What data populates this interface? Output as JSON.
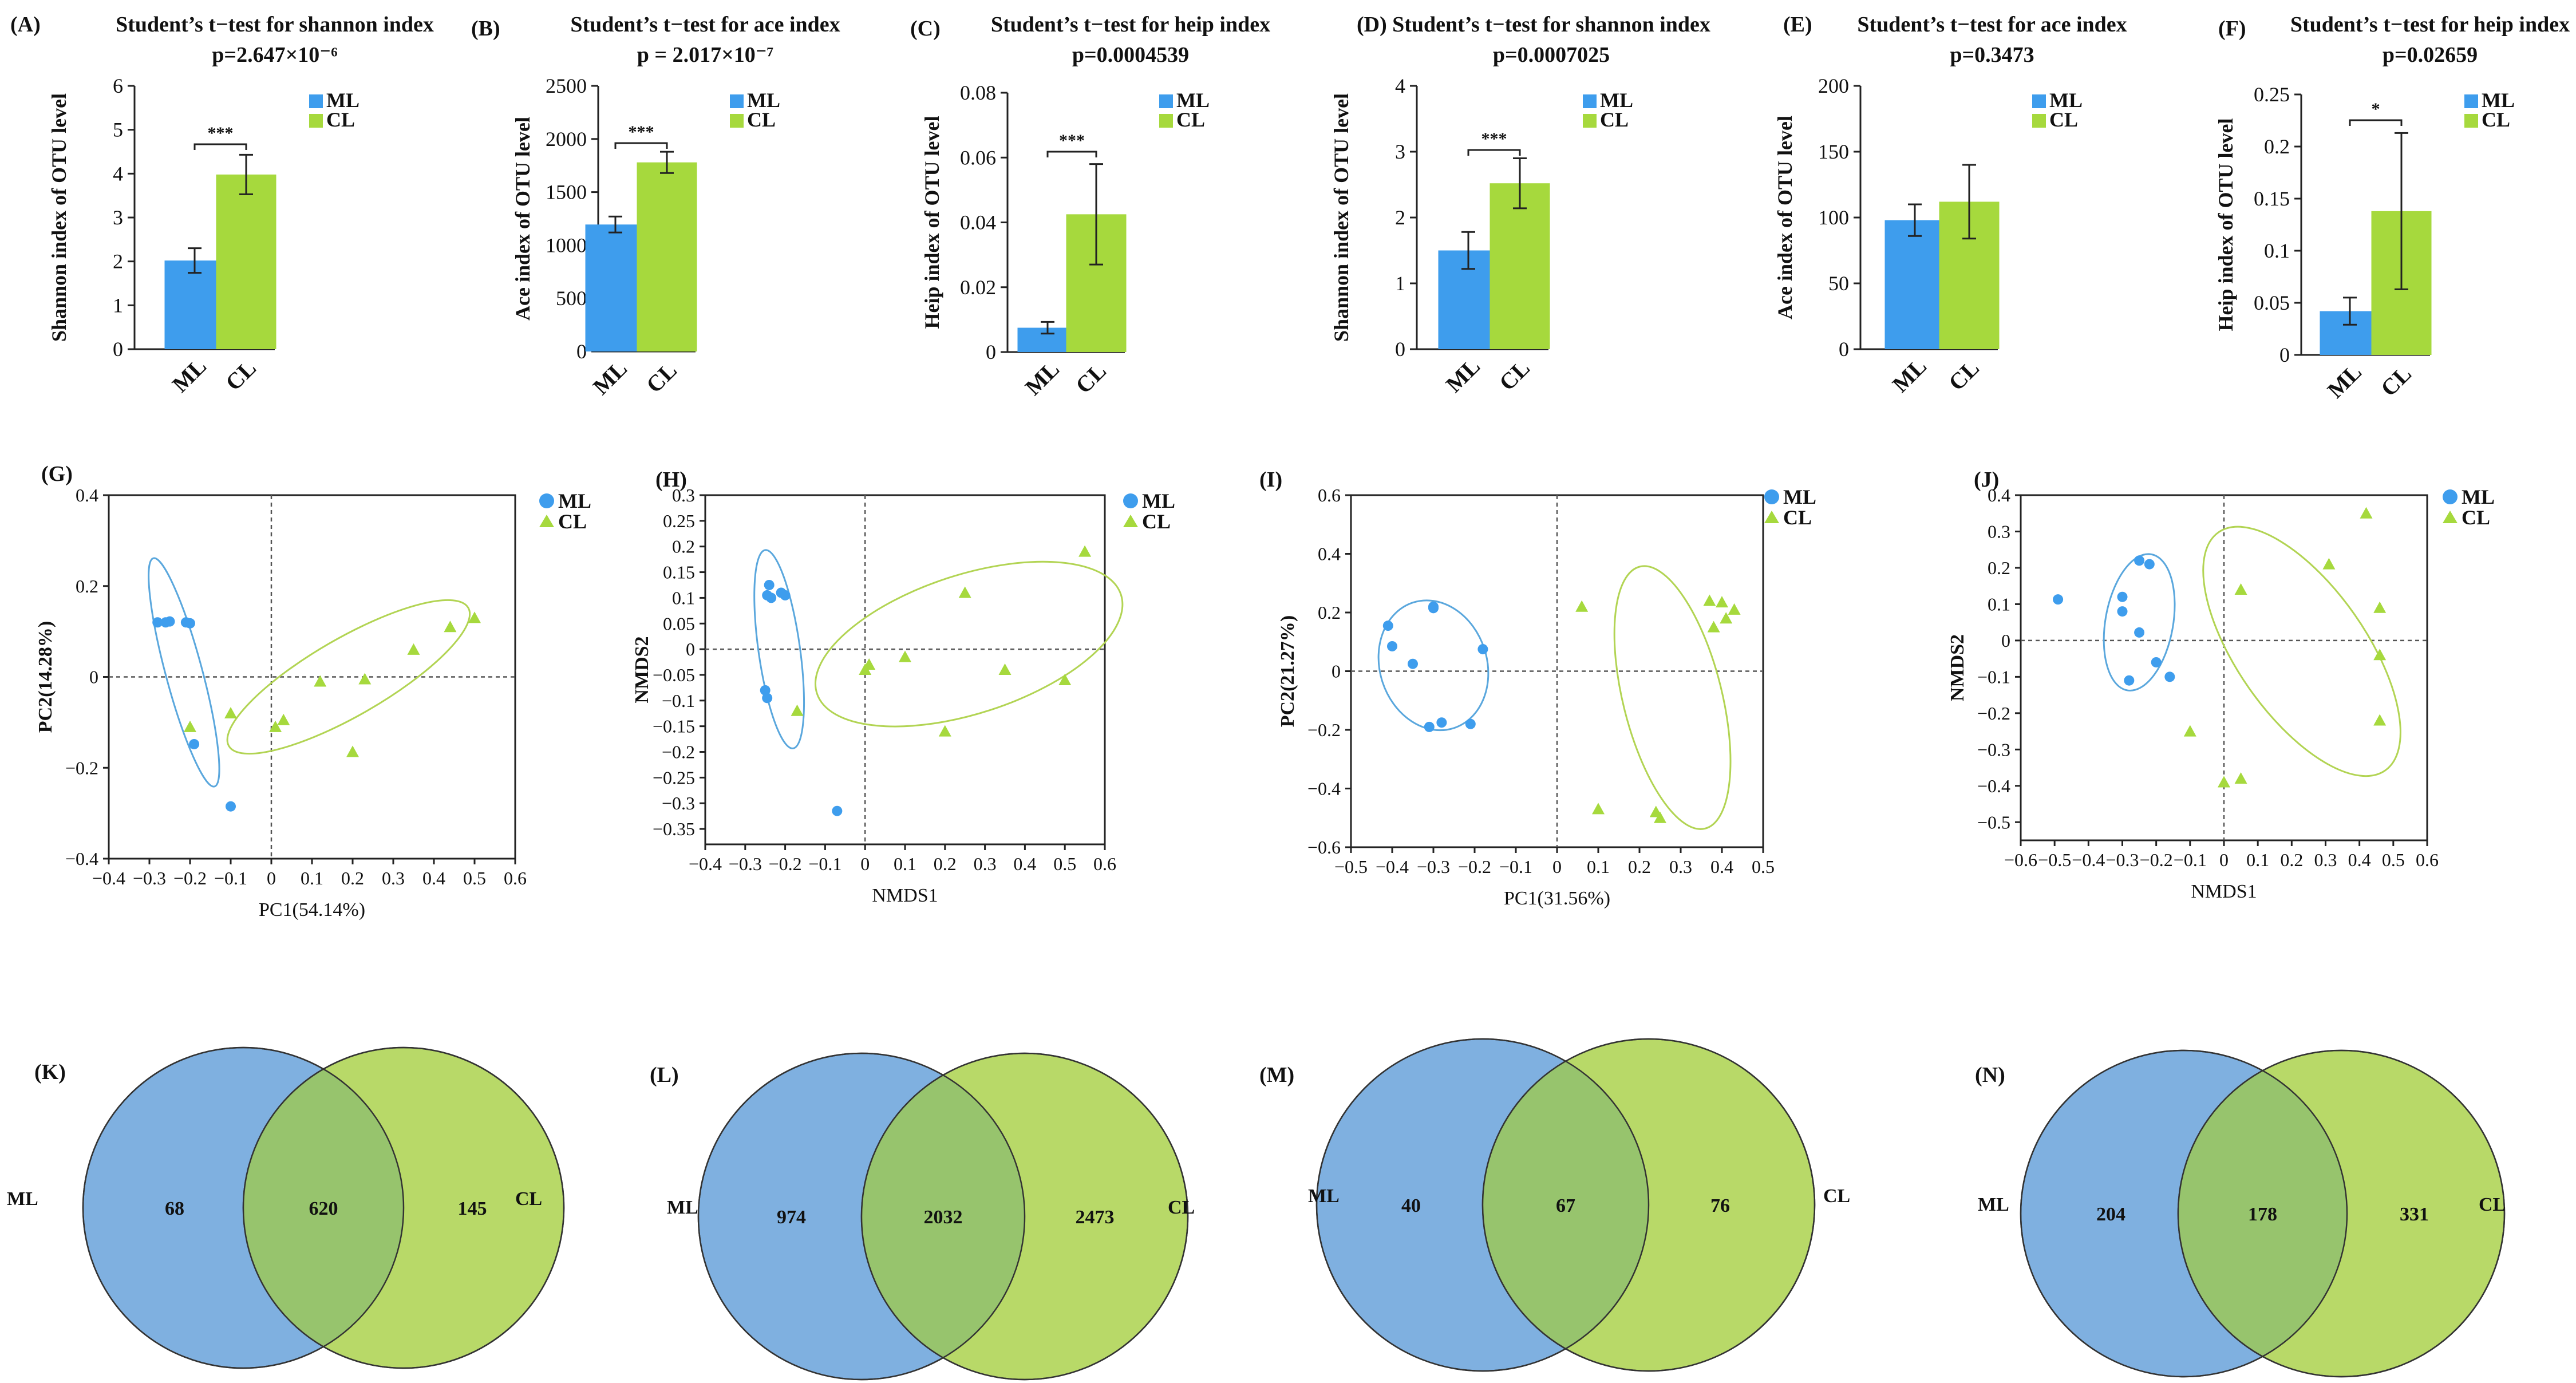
{
  "figure": {
    "colors": {
      "ml": "#3e9ded",
      "cl": "#a6d93d",
      "ml_venn": "#7fb0e0",
      "cl_venn": "#b8d968",
      "overlap": "#97c46d",
      "ellipse_ml": "#5aa7dd",
      "ellipse_cl": "#b2d453"
    }
  },
  "chart_data": [
    {
      "panel": "(A)",
      "type": "bar",
      "title": "Student’s t−test for shannon index",
      "subtitle": "p=2.647×10⁻⁶",
      "ylabel": "Shannon index of OTU level",
      "categories": [
        "ML",
        "CL"
      ],
      "values": [
        2.02,
        3.98
      ],
      "errors": [
        0.28,
        0.45
      ],
      "ylim": [
        0,
        6
      ],
      "yticks": [
        0,
        1,
        2,
        3,
        4,
        5,
        6
      ],
      "significance": "***",
      "legend": [
        "ML",
        "CL"
      ]
    },
    {
      "panel": "(B)",
      "type": "bar",
      "title": "Student’s t−test for ace index",
      "subtitle": "p = 2.017×10⁻⁷",
      "ylabel": "Ace index of OTU level",
      "categories": [
        "ML",
        "CL"
      ],
      "values": [
        1195,
        1780
      ],
      "errors": [
        75,
        100
      ],
      "ylim": [
        0,
        2500
      ],
      "yticks": [
        0,
        500,
        1000,
        1500,
        2000,
        2500
      ],
      "significance": "***",
      "legend": [
        "ML",
        "CL"
      ]
    },
    {
      "panel": "(C)",
      "type": "bar",
      "title": "Student’s t−test for heip index",
      "subtitle": "p=0.0004539",
      "ylabel": "Heip index of OTU level",
      "categories": [
        "ML",
        "CL"
      ],
      "values": [
        0.0075,
        0.0425
      ],
      "errors": [
        0.0018,
        0.0155
      ],
      "ylim": [
        0,
        0.08
      ],
      "yticks": [
        0,
        0.02,
        0.04,
        0.06,
        0.08
      ],
      "significance": "***",
      "legend": [
        "ML",
        "CL"
      ]
    },
    {
      "panel": "(D)",
      "type": "bar",
      "title": "Student’s t−test for shannon index",
      "subtitle": "p=0.0007025",
      "ylabel": "Shannon index of OTU level",
      "categories": [
        "ML",
        "CL"
      ],
      "values": [
        1.5,
        2.52
      ],
      "errors": [
        0.28,
        0.38
      ],
      "ylim": [
        0,
        4
      ],
      "yticks": [
        0,
        1,
        2,
        3,
        4
      ],
      "significance": "***",
      "legend": [
        "ML",
        "CL"
      ]
    },
    {
      "panel": "(E)",
      "type": "bar",
      "title": "Student’s t−test for ace index",
      "subtitle": "p=0.3473",
      "ylabel": "Ace index of OTU level",
      "categories": [
        "ML",
        "CL"
      ],
      "values": [
        98,
        112
      ],
      "errors": [
        12,
        28
      ],
      "ylim": [
        0,
        200
      ],
      "yticks": [
        0,
        50,
        100,
        150,
        200
      ],
      "significance": "",
      "legend": [
        "ML",
        "CL"
      ]
    },
    {
      "panel": "(F)",
      "type": "bar",
      "title": "Student’s t−test for heip index",
      "subtitle": "p=0.02659",
      "ylabel": "Heip index of OTU level",
      "categories": [
        "ML",
        "CL"
      ],
      "values": [
        0.042,
        0.138
      ],
      "errors": [
        0.013,
        0.075
      ],
      "ylim": [
        0,
        0.25
      ],
      "yticks": [
        0,
        0.05,
        0.1,
        0.15,
        0.2,
        0.25
      ],
      "significance": "*",
      "legend": [
        "ML",
        "CL"
      ]
    },
    {
      "panel": "(G)",
      "type": "scatter",
      "xlabel": "PC1(54.14%)",
      "ylabel": "PC2(14.28%)",
      "xlim": [
        -0.4,
        0.6
      ],
      "ylim": [
        -0.4,
        0.4
      ],
      "xticks": [
        -0.4,
        -0.3,
        -0.2,
        -0.1,
        0,
        0.1,
        0.2,
        0.3,
        0.4,
        0.5,
        0.6
      ],
      "yticks": [
        -0.4,
        -0.2,
        0,
        0.2,
        0.4
      ],
      "legend": [
        "ML",
        "CL"
      ],
      "series": [
        {
          "name": "ML",
          "shape": "circle",
          "points": [
            [
              -0.28,
              0.12
            ],
            [
              -0.26,
              0.12
            ],
            [
              -0.25,
              0.122
            ],
            [
              -0.21,
              0.12
            ],
            [
              -0.2,
              0.118
            ],
            [
              -0.19,
              -0.148
            ],
            [
              -0.1,
              -0.285
            ]
          ]
        },
        {
          "name": "CL",
          "shape": "triangle",
          "points": [
            [
              -0.2,
              -0.11
            ],
            [
              -0.1,
              -0.08
            ],
            [
              0.01,
              -0.11
            ],
            [
              0.03,
              -0.095
            ],
            [
              0.12,
              -0.01
            ],
            [
              0.2,
              -0.165
            ],
            [
              0.23,
              -0.005
            ],
            [
              0.35,
              0.06
            ],
            [
              0.44,
              0.11
            ],
            [
              0.5,
              0.13
            ]
          ]
        }
      ],
      "ellipses": [
        {
          "name": "ML",
          "center": [
            -0.215,
            0.01
          ],
          "semi_axes": [
            0.045,
            0.26
          ],
          "rotation_deg": 15
        },
        {
          "name": "CL",
          "center": [
            0.19,
            0.0
          ],
          "semi_axes": [
            0.34,
            0.085
          ],
          "rotation_deg": 30
        }
      ]
    },
    {
      "panel": "(H)",
      "type": "scatter",
      "xlabel": "NMDS1",
      "ylabel": "NMDS2",
      "xlim": [
        -0.4,
        0.6
      ],
      "ylim": [
        -0.38,
        0.3
      ],
      "xticks": [
        -0.4,
        -0.3,
        -0.2,
        -0.1,
        0,
        0.1,
        0.2,
        0.3,
        0.4,
        0.5,
        0.6
      ],
      "yticks": [
        -0.35,
        -0.3,
        -0.25,
        -0.2,
        -0.15,
        -0.1,
        -0.05,
        0,
        0.05,
        0.1,
        0.15,
        0.2,
        0.25,
        0.3
      ],
      "legend": [
        "ML",
        "CL"
      ],
      "series": [
        {
          "name": "ML",
          "shape": "circle",
          "points": [
            [
              -0.24,
              0.125
            ],
            [
              -0.245,
              0.105
            ],
            [
              -0.235,
              0.1
            ],
            [
              -0.21,
              0.11
            ],
            [
              -0.2,
              0.105
            ],
            [
              -0.25,
              -0.08
            ],
            [
              -0.245,
              -0.095
            ],
            [
              -0.07,
              -0.315
            ]
          ]
        },
        {
          "name": "CL",
          "shape": "triangle",
          "points": [
            [
              -0.17,
              -0.12
            ],
            [
              0.0,
              -0.04
            ],
            [
              0.01,
              -0.03
            ],
            [
              0.1,
              -0.015
            ],
            [
              0.2,
              -0.16
            ],
            [
              0.25,
              0.11
            ],
            [
              0.35,
              -0.04
            ],
            [
              0.5,
              -0.06
            ],
            [
              0.55,
              0.19
            ]
          ]
        }
      ],
      "ellipses": [
        {
          "name": "ML",
          "center": [
            -0.215,
            0.0
          ],
          "semi_axes": [
            0.052,
            0.195
          ],
          "rotation_deg": 8
        },
        {
          "name": "CL",
          "center": [
            0.26,
            0.01
          ],
          "semi_axes": [
            0.4,
            0.135
          ],
          "rotation_deg": 18
        }
      ]
    },
    {
      "panel": "(I)",
      "type": "scatter",
      "xlabel": "PC1(31.56%)",
      "ylabel": "PC2(21.27%)",
      "xlim": [
        -0.5,
        0.5
      ],
      "ylim": [
        -0.6,
        0.6
      ],
      "xticks": [
        -0.5,
        -0.4,
        -0.3,
        -0.2,
        -0.1,
        0,
        0.1,
        0.2,
        0.3,
        0.4,
        0.5
      ],
      "yticks": [
        -0.6,
        -0.4,
        -0.2,
        0,
        0.2,
        0.4,
        0.6
      ],
      "legend": [
        "ML",
        "CL"
      ],
      "series": [
        {
          "name": "ML",
          "shape": "circle",
          "points": [
            [
              -0.41,
              0.155
            ],
            [
              -0.4,
              0.085
            ],
            [
              -0.35,
              0.025
            ],
            [
              -0.3,
              0.22
            ],
            [
              -0.3,
              0.215
            ],
            [
              -0.31,
              -0.19
            ],
            [
              -0.28,
              -0.175
            ],
            [
              -0.21,
              -0.18
            ],
            [
              -0.18,
              0.075
            ]
          ]
        },
        {
          "name": "CL",
          "shape": "triangle",
          "points": [
            [
              0.06,
              0.22
            ],
            [
              0.1,
              -0.47
            ],
            [
              0.24,
              -0.48
            ],
            [
              0.25,
              -0.5
            ],
            [
              0.37,
              0.24
            ],
            [
              0.38,
              0.15
            ],
            [
              0.4,
              0.235
            ],
            [
              0.41,
              0.18
            ],
            [
              0.43,
              0.21
            ]
          ]
        }
      ],
      "ellipses": [
        {
          "name": "ML",
          "center": [
            -0.3,
            0.02
          ],
          "semi_axes": [
            0.13,
            0.225
          ],
          "rotation_deg": 18
        },
        {
          "name": "CL",
          "center": [
            0.28,
            -0.09
          ],
          "semi_axes": [
            0.12,
            0.46
          ],
          "rotation_deg": 14
        }
      ]
    },
    {
      "panel": "(J)",
      "type": "scatter",
      "xlabel": "NMDS1",
      "ylabel": "NMDS2",
      "xlim": [
        -0.6,
        0.6
      ],
      "ylim": [
        -0.55,
        0.4
      ],
      "xticks": [
        -0.6,
        -0.5,
        -0.4,
        -0.3,
        -0.2,
        -0.1,
        0,
        0.1,
        0.2,
        0.3,
        0.4,
        0.5,
        0.6
      ],
      "yticks": [
        -0.5,
        -0.4,
        -0.3,
        -0.2,
        -0.1,
        0,
        0.1,
        0.2,
        0.3,
        0.4
      ],
      "legend": [
        "ML",
        "CL"
      ],
      "series": [
        {
          "name": "ML",
          "shape": "circle",
          "points": [
            [
              -0.49,
              0.113
            ],
            [
              -0.3,
              0.12
            ],
            [
              -0.3,
              0.08
            ],
            [
              -0.25,
              0.22
            ],
            [
              -0.22,
              0.21
            ],
            [
              -0.25,
              0.022
            ],
            [
              -0.28,
              -0.11
            ],
            [
              -0.2,
              -0.06
            ],
            [
              -0.16,
              -0.1
            ]
          ]
        },
        {
          "name": "CL",
          "shape": "triangle",
          "points": [
            [
              -0.1,
              -0.25
            ],
            [
              0.0,
              -0.39
            ],
            [
              0.05,
              -0.38
            ],
            [
              0.05,
              0.14
            ],
            [
              0.31,
              0.21
            ],
            [
              0.42,
              0.35
            ],
            [
              0.46,
              0.09
            ],
            [
              0.46,
              -0.04
            ],
            [
              0.46,
              -0.22
            ]
          ]
        }
      ],
      "ellipses": [
        {
          "name": "ML",
          "center": [
            -0.25,
            0.05
          ],
          "semi_axes": [
            0.1,
            0.19
          ],
          "rotation_deg": -10
        },
        {
          "name": "CL",
          "center": [
            0.23,
            -0.03
          ],
          "semi_axes": [
            0.19,
            0.4
          ],
          "rotation_deg": 35
        }
      ]
    },
    {
      "panel": "(K)",
      "type": "venn",
      "left_label": "ML",
      "right_label": "CL",
      "left_only": 68,
      "shared": 620,
      "right_only": 145
    },
    {
      "panel": "(L)",
      "type": "venn",
      "left_label": "ML",
      "right_label": "CL",
      "left_only": 974,
      "shared": 2032,
      "right_only": 2473
    },
    {
      "panel": "(M)",
      "type": "venn",
      "left_label": "ML",
      "right_label": "CL",
      "left_only": 40,
      "shared": 67,
      "right_only": 76
    },
    {
      "panel": "(N)",
      "type": "venn",
      "left_label": "ML",
      "right_label": "CL",
      "left_only": 204,
      "shared": 178,
      "right_only": 331
    }
  ]
}
